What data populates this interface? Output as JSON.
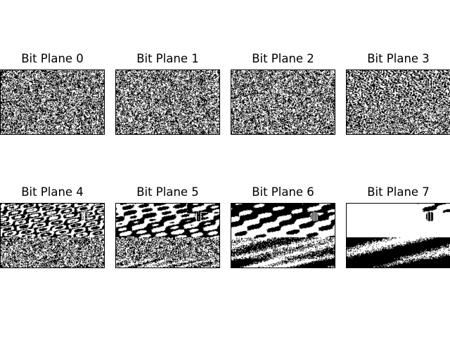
{
  "figure": {
    "panels": [
      {
        "title": "Bit Plane 0",
        "bit": 0
      },
      {
        "title": "Bit Plane 1",
        "bit": 1
      },
      {
        "title": "Bit Plane 2",
        "bit": 2
      },
      {
        "title": "Bit Plane 3",
        "bit": 3
      },
      {
        "title": "Bit Plane 4",
        "bit": 4
      },
      {
        "title": "Bit Plane 5",
        "bit": 5
      },
      {
        "title": "Bit Plane 6",
        "bit": 6
      },
      {
        "title": "Bit Plane 7",
        "bit": 7
      }
    ]
  }
}
